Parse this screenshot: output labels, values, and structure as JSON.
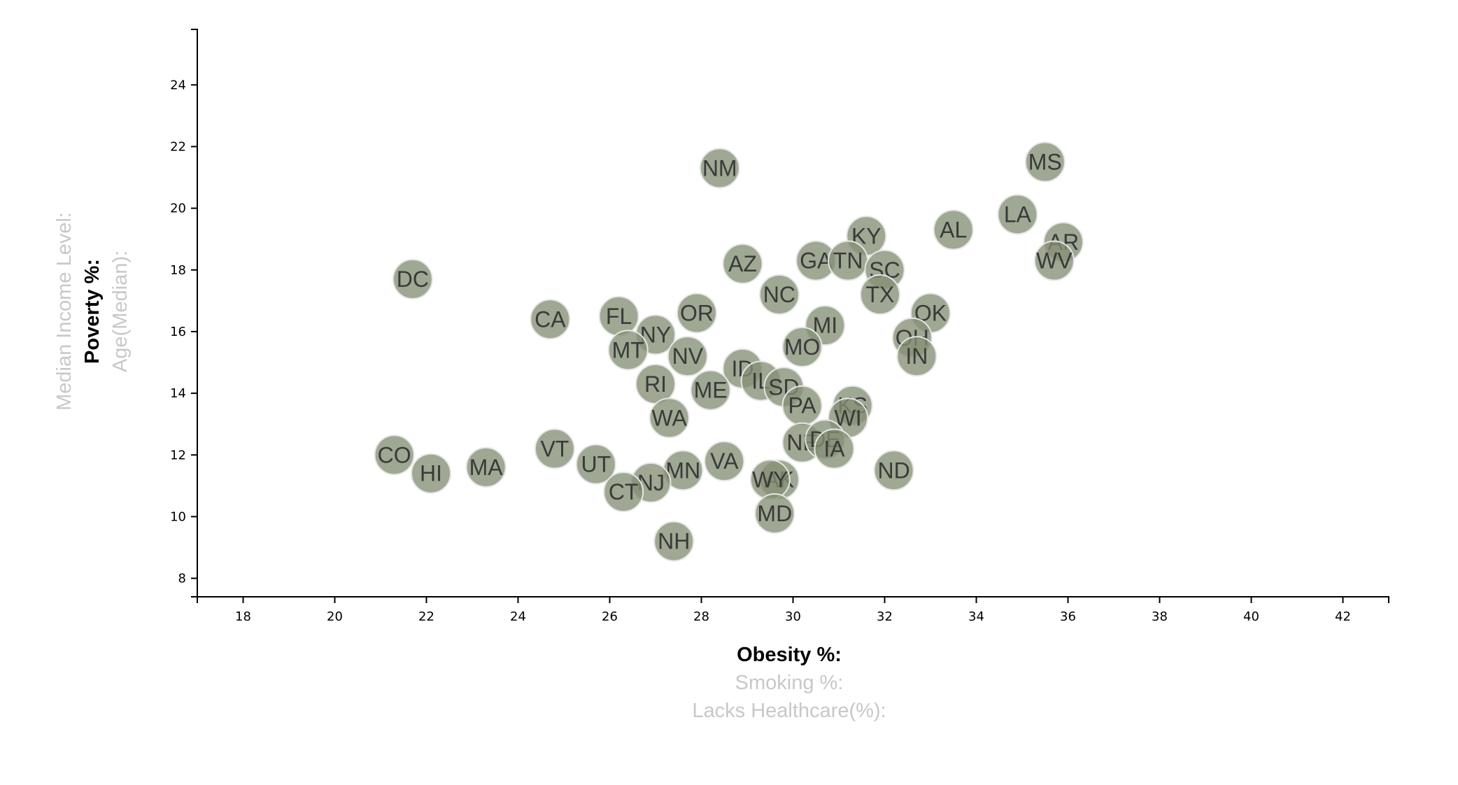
{
  "chart_data": {
    "type": "scatter",
    "xlabels": [
      {
        "label": "Obesity %:",
        "active": true
      },
      {
        "label": "Smoking %:",
        "active": false
      },
      {
        "label": "Lacks Healthcare(%):",
        "active": false
      }
    ],
    "ylabels": [
      {
        "label": "Median Income Level:",
        "active": false
      },
      {
        "label": "Poverty %:",
        "active": true
      },
      {
        "label": "Age(Median):",
        "active": false
      }
    ],
    "xlim": [
      17,
      43
    ],
    "ylim": [
      7.4,
      25.8
    ],
    "x_ticks": [
      18,
      20,
      22,
      24,
      26,
      28,
      30,
      32,
      34,
      36,
      38,
      40,
      42
    ],
    "y_ticks": [
      8,
      10,
      12,
      14,
      16,
      18,
      20,
      22,
      24
    ],
    "colors": {
      "point_fill": "#848f74",
      "point_stroke": "#e6e6e6",
      "label": "#3a3a3a"
    },
    "points": [
      {
        "abbr": "MS",
        "x": 35.5,
        "y": 21.5
      },
      {
        "abbr": "NM",
        "x": 28.4,
        "y": 21.3
      },
      {
        "abbr": "LA",
        "x": 34.9,
        "y": 19.8
      },
      {
        "abbr": "AL",
        "x": 33.5,
        "y": 19.3
      },
      {
        "abbr": "KY",
        "x": 31.6,
        "y": 19.1
      },
      {
        "abbr": "AR",
        "x": 35.9,
        "y": 18.9
      },
      {
        "abbr": "WV",
        "x": 35.7,
        "y": 18.3
      },
      {
        "abbr": "GA",
        "x": 30.5,
        "y": 18.3
      },
      {
        "abbr": "TN",
        "x": 31.2,
        "y": 18.3
      },
      {
        "abbr": "AZ",
        "x": 28.9,
        "y": 18.2
      },
      {
        "abbr": "SC",
        "x": 32.0,
        "y": 18.0
      },
      {
        "abbr": "DC",
        "x": 21.7,
        "y": 17.7
      },
      {
        "abbr": "TX",
        "x": 31.9,
        "y": 17.2
      },
      {
        "abbr": "NC",
        "x": 29.7,
        "y": 17.2
      },
      {
        "abbr": "OK",
        "x": 33.0,
        "y": 16.6
      },
      {
        "abbr": "OR",
        "x": 27.9,
        "y": 16.6
      },
      {
        "abbr": "FL",
        "x": 26.2,
        "y": 16.5
      },
      {
        "abbr": "CA",
        "x": 24.7,
        "y": 16.4
      },
      {
        "abbr": "MI",
        "x": 30.7,
        "y": 16.2
      },
      {
        "abbr": "OH",
        "x": 32.6,
        "y": 15.8
      },
      {
        "abbr": "NY",
        "x": 27.0,
        "y": 15.9
      },
      {
        "abbr": "MO",
        "x": 30.2,
        "y": 15.5
      },
      {
        "abbr": "MT",
        "x": 26.4,
        "y": 15.4
      },
      {
        "abbr": "IN",
        "x": 32.7,
        "y": 15.2
      },
      {
        "abbr": "NV",
        "x": 27.7,
        "y": 15.2
      },
      {
        "abbr": "ID",
        "x": 28.9,
        "y": 14.8
      },
      {
        "abbr": "IL",
        "x": 29.3,
        "y": 14.4
      },
      {
        "abbr": "RI",
        "x": 27.0,
        "y": 14.3
      },
      {
        "abbr": "SD",
        "x": 29.8,
        "y": 14.2
      },
      {
        "abbr": "ME",
        "x": 28.2,
        "y": 14.1
      },
      {
        "abbr": "PA",
        "x": 30.2,
        "y": 13.6
      },
      {
        "abbr": "KS",
        "x": 31.3,
        "y": 13.6
      },
      {
        "abbr": "WI",
        "x": 31.2,
        "y": 13.2
      },
      {
        "abbr": "WA",
        "x": 27.3,
        "y": 13.2
      },
      {
        "abbr": "NE",
        "x": 30.2,
        "y": 12.4
      },
      {
        "abbr": "DE",
        "x": 30.7,
        "y": 12.5
      },
      {
        "abbr": "IA",
        "x": 30.9,
        "y": 12.2
      },
      {
        "abbr": "VT",
        "x": 24.8,
        "y": 12.2
      },
      {
        "abbr": "CO",
        "x": 21.3,
        "y": 12.0
      },
      {
        "abbr": "UT",
        "x": 25.7,
        "y": 11.7
      },
      {
        "abbr": "VA",
        "x": 28.5,
        "y": 11.8
      },
      {
        "abbr": "MA",
        "x": 23.3,
        "y": 11.6
      },
      {
        "abbr": "MN",
        "x": 27.6,
        "y": 11.5
      },
      {
        "abbr": "ND",
        "x": 32.2,
        "y": 11.5
      },
      {
        "abbr": "HI",
        "x": 22.1,
        "y": 11.4
      },
      {
        "abbr": "AK",
        "x": 29.7,
        "y": 11.2
      },
      {
        "abbr": "WY",
        "x": 29.5,
        "y": 11.2
      },
      {
        "abbr": "NJ",
        "x": 26.9,
        "y": 11.1
      },
      {
        "abbr": "CT",
        "x": 26.3,
        "y": 10.8
      },
      {
        "abbr": "MD",
        "x": 29.6,
        "y": 10.1
      },
      {
        "abbr": "NH",
        "x": 27.4,
        "y": 9.2
      }
    ]
  }
}
